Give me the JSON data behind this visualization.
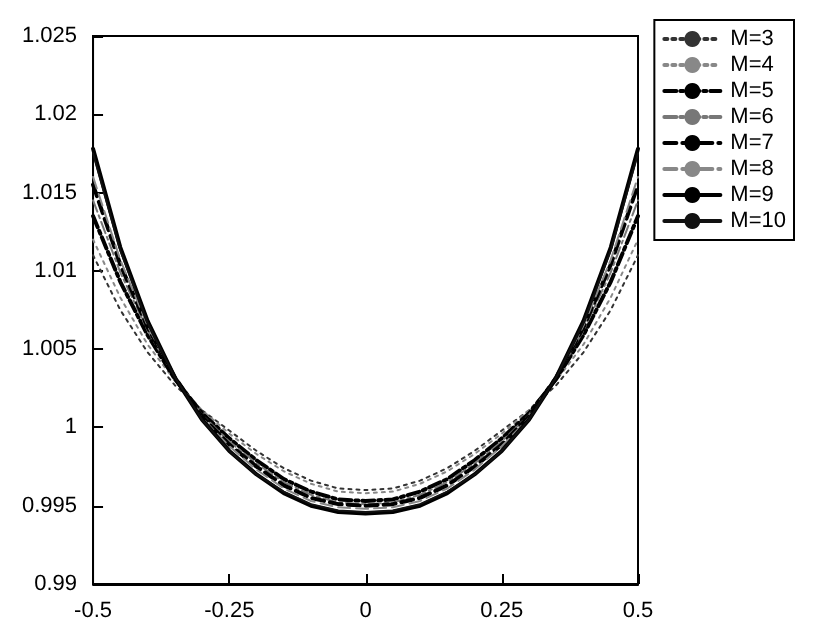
{
  "chart_data": {
    "type": "line",
    "x": [
      -0.5,
      -0.45,
      -0.4,
      -0.35,
      -0.3,
      -0.25,
      -0.2,
      -0.15,
      -0.1,
      -0.05,
      0,
      0.05,
      0.1,
      0.15,
      0.2,
      0.25,
      0.3,
      0.35,
      0.4,
      0.45,
      0.5
    ],
    "xlim": [
      -0.5,
      0.5
    ],
    "xticks": [
      -0.5,
      -0.25,
      0,
      0.25,
      0.5
    ],
    "ylim": [
      0.99,
      1.025
    ],
    "yticks": [
      0.99,
      0.995,
      1,
      1.005,
      1.01,
      1.015,
      1.02,
      1.025
    ],
    "grid": false,
    "legend": "top right",
    "marker": "none",
    "series": [
      {
        "name": "M=3",
        "color": "#333333",
        "line_style": "dotted",
        "values": [
          1.011,
          1.0075,
          1.0048,
          1.0027,
          1.0011,
          0.9998,
          0.9985,
          0.9974,
          0.9966,
          0.9961,
          0.996,
          0.9961,
          0.9966,
          0.9974,
          0.9985,
          0.9998,
          1.0011,
          1.0027,
          1.0048,
          1.0075,
          1.011
        ]
      },
      {
        "name": "M=4",
        "color": "#888888",
        "line_style": "dotted",
        "values": [
          1.012,
          1.0083,
          1.0053,
          1.003,
          1.0011,
          0.9996,
          0.9983,
          0.9972,
          0.9964,
          0.9959,
          0.9958,
          0.9959,
          0.9964,
          0.9972,
          0.9983,
          0.9996,
          1.0011,
          1.003,
          1.0053,
          1.0083,
          1.012
        ]
      },
      {
        "name": "M=5",
        "color": "#000000",
        "line_style": "dashdot",
        "values": [
          1.0135,
          1.0093,
          1.0059,
          1.0031,
          1.0009,
          0.9993,
          0.9979,
          0.9967,
          0.9959,
          0.9954,
          0.9953,
          0.9954,
          0.9959,
          0.9967,
          0.9979,
          0.9993,
          1.0009,
          1.0031,
          1.0059,
          1.0093,
          1.0135
        ]
      },
      {
        "name": "M=6",
        "color": "#777777",
        "line_style": "dashdot",
        "values": [
          1.0145,
          1.0099,
          1.0062,
          1.0032,
          1.0008,
          0.9991,
          0.9977,
          0.9965,
          0.9957,
          0.9952,
          0.9951,
          0.9952,
          0.9957,
          0.9965,
          0.9977,
          0.9991,
          1.0008,
          1.0032,
          1.0062,
          1.0099,
          1.0145
        ]
      },
      {
        "name": "M=7",
        "color": "#000000",
        "line_style": "dashed",
        "values": [
          1.0155,
          1.0104,
          1.0064,
          1.0032,
          1.0007,
          0.9989,
          0.9975,
          0.9963,
          0.9955,
          0.9951,
          0.995,
          0.9951,
          0.9955,
          0.9963,
          0.9975,
          0.9989,
          1.0007,
          1.0032,
          1.0064,
          1.0104,
          1.0155
        ]
      },
      {
        "name": "M=8",
        "color": "#888888",
        "line_style": "dashed",
        "values": [
          1.016,
          1.0107,
          1.0065,
          1.0032,
          1.0006,
          0.9988,
          0.9973,
          0.9961,
          0.9953,
          0.9949,
          0.9948,
          0.9949,
          0.9953,
          0.9961,
          0.9973,
          0.9988,
          1.0006,
          1.0032,
          1.0065,
          1.0107,
          1.016
        ]
      },
      {
        "name": "M=9",
        "color": "#000000",
        "line_style": "solid",
        "values": [
          1.0178,
          1.0115,
          1.0068,
          1.0032,
          1.0005,
          0.9985,
          0.997,
          0.9958,
          0.995,
          0.9946,
          0.9945,
          0.9946,
          0.995,
          0.9958,
          0.997,
          0.9985,
          1.0005,
          1.0032,
          1.0068,
          1.0115,
          1.0178
        ]
      },
      {
        "name": "M=10",
        "color": "#111111",
        "line_style": "solid",
        "values": [
          1.0175,
          1.0113,
          1.0067,
          1.0032,
          1.0005,
          0.9985,
          0.997,
          0.9959,
          0.9951,
          0.9947,
          0.9946,
          0.9947,
          0.9951,
          0.9959,
          0.997,
          0.9985,
          1.0005,
          1.0032,
          1.0067,
          1.0113,
          1.0175
        ]
      }
    ]
  }
}
